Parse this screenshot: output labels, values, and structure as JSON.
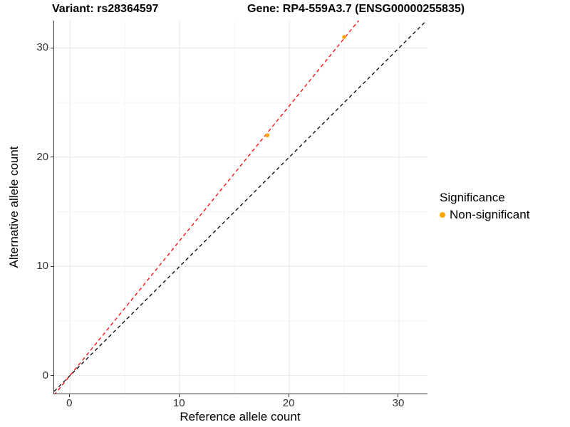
{
  "chart_data": {
    "type": "scatter",
    "title_left": "Variant: rs28364597",
    "title_right": "Gene: RP4-559A3.7 (ENSG00000255835)",
    "xlabel": "Reference allele count",
    "ylabel": "Alternative allele count",
    "xlim": [
      -1.45,
      32.6
    ],
    "ylim": [
      -1.65,
      32.5
    ],
    "x_ticks": [
      0,
      10,
      20,
      30
    ],
    "y_ticks": [
      0,
      10,
      20,
      30
    ],
    "x_minor_ticks": [
      5,
      15,
      25
    ],
    "y_minor_ticks": [
      5,
      15,
      25
    ],
    "grid": true,
    "legend_position": "right",
    "series": [
      {
        "name": "Non-significant",
        "color": "#FFA500",
        "marker": "circle",
        "points": [
          {
            "x": 18,
            "y": 22
          },
          {
            "x": 25,
            "y": 31
          }
        ]
      }
    ],
    "reference_lines": [
      {
        "name": "identity",
        "slope": 1,
        "intercept": 0,
        "color": "#000000",
        "style": "dashed"
      },
      {
        "name": "expected-ratio",
        "slope": 1.235,
        "intercept": 0,
        "color": "#FF0000",
        "style": "dashed"
      }
    ]
  },
  "legend": {
    "title": "Significance",
    "items": [
      {
        "label": "Non-significant",
        "color": "#FFA500"
      }
    ]
  },
  "colors": {
    "background": "#FFFFFF",
    "grid_major": "#E8E8E8",
    "grid_minor": "#F4F4F4",
    "axis_line": "#333333",
    "tick_label": "#333333"
  }
}
